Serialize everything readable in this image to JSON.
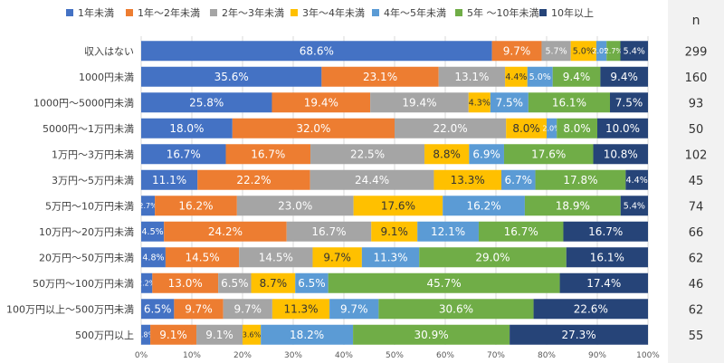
{
  "chart_data": {
    "type": "bar",
    "stacked": "100%",
    "orientation": "horizontal",
    "legend": "top",
    "grid": true,
    "xlim": [
      0,
      100
    ],
    "x_ticks": [
      "0%",
      "10%",
      "20%",
      "30%",
      "40%",
      "50%",
      "60%",
      "70%",
      "80%",
      "90%",
      "100%"
    ],
    "n_header": "n",
    "categories": [
      "収入はない",
      "1000円未満",
      "1000円～5000円未満",
      "5000円～1万円未満",
      "1万円～3万円未満",
      "3万円～5万円未満",
      "5万円～10万円未満",
      "10万円～20万円未満",
      "20万円～50万円未満",
      "50万円～100万円未満",
      "100万円以上～500万円未満",
      "500万円以上"
    ],
    "n": [
      "299",
      "160",
      "93",
      "50",
      "102",
      "45",
      "74",
      "66",
      "62",
      "46",
      "62",
      "55"
    ],
    "series": [
      {
        "name": "1年未満",
        "color": "#4472C4",
        "text_color": "#ffffff",
        "values": [
          68.6,
          35.6,
          25.8,
          18.0,
          16.7,
          11.1,
          2.7,
          4.5,
          4.8,
          2.2,
          6.5,
          1.8
        ],
        "labels": [
          "68.6%",
          "35.6%",
          "25.8%",
          "18.0%",
          "16.7%",
          "11.1%",
          "2.7%",
          "4.5%",
          "4.8%",
          "2.2%",
          "6.5%",
          "1.8%"
        ]
      },
      {
        "name": "1年～2年未満",
        "color": "#ED7D31",
        "text_color": "#ffffff",
        "values": [
          9.7,
          23.1,
          19.4,
          32.0,
          16.7,
          22.2,
          16.2,
          24.2,
          14.5,
          13.0,
          9.7,
          9.1
        ],
        "labels": [
          "9.7%",
          "23.1%",
          "19.4%",
          "32.0%",
          "16.7%",
          "22.2%",
          "16.2%",
          "24.2%",
          "14.5%",
          "13.0%",
          "9.7%",
          "9.1%"
        ]
      },
      {
        "name": "2年～3年未満",
        "color": "#A5A5A5",
        "text_color": "#ffffff",
        "values": [
          5.7,
          13.1,
          19.4,
          22.0,
          22.5,
          24.4,
          23.0,
          16.7,
          14.5,
          6.5,
          9.7,
          9.1
        ],
        "labels": [
          "5.7%",
          "13.1%",
          "19.4%",
          "22.0%",
          "22.5%",
          "24.4%",
          "23.0%",
          "16.7%",
          "14.5%",
          "6.5%",
          "9.7%",
          "9.1%"
        ]
      },
      {
        "name": "3年～4年未満",
        "color": "#FFC000",
        "text_color": "#333333",
        "values": [
          5.0,
          4.4,
          4.3,
          8.0,
          8.8,
          13.3,
          17.6,
          9.1,
          9.7,
          8.7,
          11.3,
          3.6
        ],
        "labels": [
          "5.0%",
          "4.4%",
          "4.3%",
          "8.0%",
          "8.8%",
          "13.3%",
          "17.6%",
          "9.1%",
          "9.7%",
          "8.7%",
          "11.3%",
          "3.6%"
        ]
      },
      {
        "name": "4年～5年未満",
        "color": "#5B9BD5",
        "text_color": "#ffffff",
        "values": [
          2.0,
          5.0,
          7.5,
          2.0,
          6.9,
          6.7,
          16.2,
          12.1,
          11.3,
          6.5,
          9.7,
          18.2
        ],
        "labels": [
          "2.0%",
          "5.0%",
          "7.5%",
          "2.0%",
          "6.9%",
          "6.7%",
          "16.2%",
          "12.1%",
          "11.3%",
          "6.5%",
          "9.7%",
          "18.2%"
        ]
      },
      {
        "name": "5年 ～10年未満",
        "color": "#70AD47",
        "text_color": "#ffffff",
        "values": [
          2.7,
          9.4,
          16.1,
          8.0,
          17.6,
          17.8,
          18.9,
          16.7,
          29.0,
          45.7,
          30.6,
          30.9
        ],
        "labels": [
          "2.7%",
          "9.4%",
          "16.1%",
          "8.0%",
          "17.6%",
          "17.8%",
          "18.9%",
          "16.7%",
          "29.0%",
          "45.7%",
          "30.6%",
          "30.9%"
        ]
      },
      {
        "name": "10年以上",
        "color": "#264478",
        "text_color": "#ffffff",
        "values": [
          5.4,
          9.4,
          7.5,
          10.0,
          10.8,
          4.4,
          5.4,
          16.7,
          16.1,
          17.4,
          22.6,
          27.3
        ],
        "labels": [
          "5.4%",
          "9.4%",
          "7.5%",
          "10.0%",
          "10.8%",
          "4.4%",
          "5.4%",
          "16.7%",
          "16.1%",
          "17.4%",
          "22.6%",
          "27.3%"
        ]
      }
    ]
  }
}
